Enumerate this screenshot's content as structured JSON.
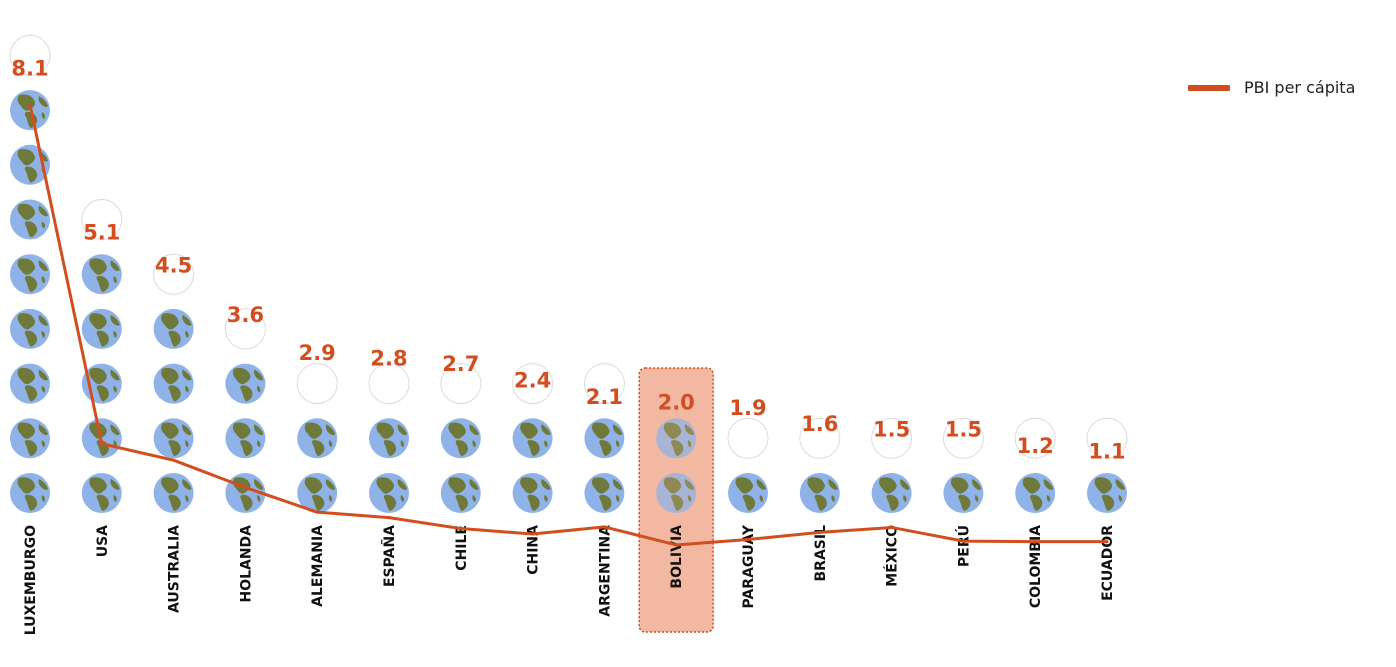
{
  "colors": {
    "accent": "#D24E1E",
    "highlight_fill": "#F2B8A2",
    "highlight_border": "#D24E1E",
    "ocean": "#8FB3E8",
    "land": "#6F7A3A"
  },
  "legend": {
    "label": "PBI per cápita",
    "position": "top-right"
  },
  "chart_data": {
    "type": "line",
    "title": "",
    "xlabel": "",
    "ylabel": "",
    "ylim": [
      0,
      8.1
    ],
    "icon": "globe-icon",
    "highlighted_category": "BOLIVIA",
    "categories": [
      "LUXEMBURGO",
      "USA",
      "AUSTRALIA",
      "HOLANDA",
      "ALEMANIA",
      "ESPAÑA",
      "CHILE",
      "CHINA",
      "ARGENTINA",
      "BOLIVIA",
      "PARAGUAY",
      "BRASIL",
      "MÉXICO",
      "PERÚ",
      "COLOMBIA",
      "ECUADOR"
    ],
    "value_labels": [
      "8.1",
      "5.1",
      "4.5",
      "3.6",
      "2.9",
      "2.8",
      "2.7",
      "2.4",
      "2.1",
      "2.0",
      "1.9",
      "1.6",
      "1.5",
      "1.5",
      "1.2",
      "1.1"
    ],
    "values": [
      8.1,
      5.1,
      4.5,
      3.6,
      2.9,
      2.8,
      2.7,
      2.4,
      2.1,
      2.0,
      1.9,
      1.6,
      1.5,
      1.5,
      1.2,
      1.1
    ],
    "series": [
      {
        "name": "PBI per cápita",
        "values": [
          8.1,
          1.9,
          1.6,
          1.1,
          0.65,
          0.55,
          0.35,
          0.25,
          0.38,
          0.05,
          0.15,
          0.28,
          0.37,
          0.12,
          0.11,
          0.11
        ]
      }
    ]
  }
}
